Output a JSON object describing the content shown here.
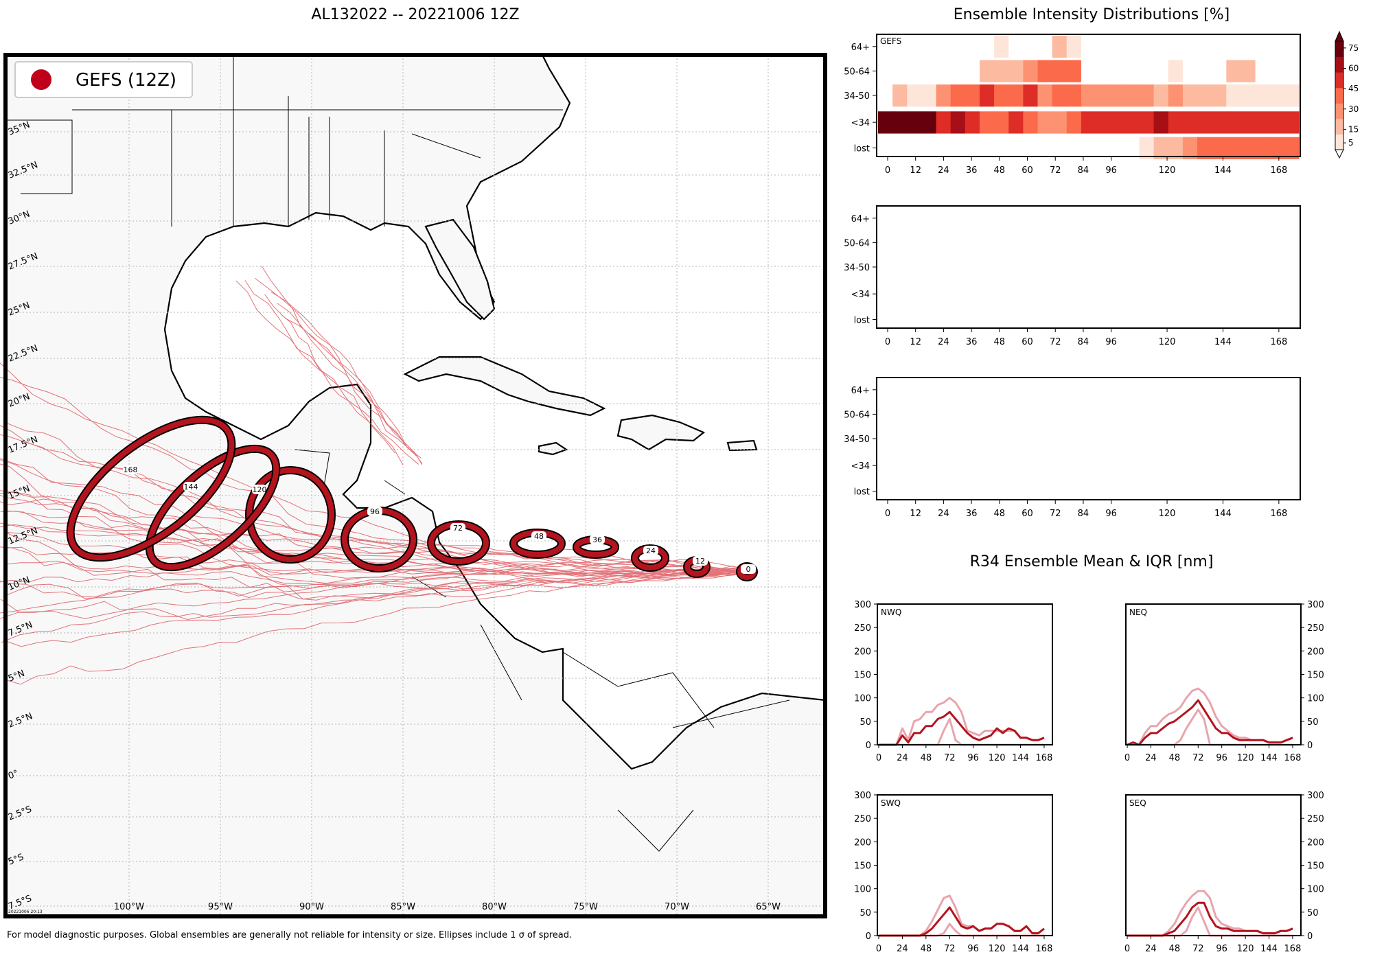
{
  "map": {
    "title": "AL132022 -- 20221006 12Z",
    "legend_label": "GEFS (12Z)",
    "footer": "For model diagnostic purposes. Global ensembles are generally not reliable for intensity or size. Ellipses include 1 σ of spread.",
    "stamp": "20221006 20:13",
    "lon_labels": [
      "100°W",
      "95°W",
      "90°W",
      "85°W",
      "80°W",
      "75°W",
      "70°W",
      "65°W"
    ],
    "lat_labels": [
      "35°N",
      "32.5°N",
      "30°N",
      "27.5°N",
      "25°N",
      "22.5°N",
      "20°N",
      "17.5°N",
      "15°N",
      "12.5°N",
      "10°N",
      "7.5°N",
      "5°N",
      "2.5°N",
      "0°",
      "2.5°S",
      "5°S",
      "7.5°S"
    ],
    "track_color": "#c0392b",
    "ellipse_color": "#b3141e",
    "forecast_ellipses": [
      {
        "hour": "0"
      },
      {
        "hour": "12"
      },
      {
        "hour": "24"
      },
      {
        "hour": "36"
      },
      {
        "hour": "48"
      },
      {
        "hour": "72"
      },
      {
        "hour": "96"
      },
      {
        "hour": "120"
      },
      {
        "hour": "144"
      },
      {
        "hour": "168"
      }
    ]
  },
  "intensity": {
    "title": "Ensemble Intensity Distributions [%]",
    "categories": [
      "64+",
      "50-64",
      "34-50",
      "<34",
      "lost"
    ],
    "x_ticks": [
      "0",
      "12",
      "24",
      "36",
      "48",
      "60",
      "72",
      "84",
      "96",
      "120",
      "144",
      "168"
    ],
    "panel_label": "GEFS",
    "colorbar_ticks": [
      "75",
      "60",
      "45",
      "30",
      "15",
      "5"
    ],
    "colorbar_colors": [
      "#fee5d9",
      "#fcbba1",
      "#fc9272",
      "#fb6a4a",
      "#de2d26",
      "#a50f15",
      "#67000d"
    ]
  },
  "r34": {
    "title": "R34 Ensemble Mean & IQR [nm]",
    "y_ticks": [
      "300",
      "250",
      "200",
      "150",
      "100",
      "50",
      "0"
    ],
    "x_ticks": [
      "0",
      "24",
      "48",
      "72",
      "96",
      "120",
      "144",
      "168"
    ],
    "panels": [
      {
        "label": "NWQ"
      },
      {
        "label": "NEQ"
      },
      {
        "label": "SWQ"
      },
      {
        "label": "SEQ"
      }
    ],
    "mean_color": "#b3141e",
    "iqr_color": "#e8a5ad"
  },
  "chart_data": [
    {
      "type": "heatmap",
      "title": "Ensemble Intensity Distributions [%]",
      "panel": "GEFS",
      "x": [
        0,
        6,
        12,
        18,
        24,
        30,
        36,
        42,
        48,
        54,
        60,
        66,
        72,
        78,
        84,
        90,
        96,
        102,
        108,
        114,
        120,
        126,
        132,
        138,
        144,
        150,
        156,
        162,
        168
      ],
      "y": [
        "64+",
        "50-64",
        "34-50",
        "<34",
        "lost"
      ],
      "values": [
        [
          0,
          0,
          0,
          0,
          0,
          0,
          0,
          0,
          5,
          0,
          0,
          0,
          10,
          5,
          0,
          0,
          0,
          0,
          0,
          0,
          0,
          0,
          0,
          0,
          0,
          0,
          0,
          0,
          0
        ],
        [
          0,
          0,
          0,
          0,
          0,
          0,
          0,
          10,
          15,
          15,
          20,
          40,
          35,
          35,
          0,
          0,
          0,
          0,
          0,
          0,
          5,
          0,
          0,
          0,
          10,
          10,
          0,
          0,
          0
        ],
        [
          0,
          15,
          5,
          5,
          20,
          30,
          35,
          50,
          40,
          35,
          50,
          25,
          35,
          35,
          20,
          20,
          20,
          20,
          20,
          15,
          20,
          10,
          10,
          10,
          5,
          5,
          5,
          5,
          5
        ],
        [
          75,
          75,
          75,
          75,
          50,
          60,
          50,
          40,
          30,
          45,
          40,
          20,
          20,
          30,
          50,
          50,
          55,
          55,
          55,
          65,
          55,
          55,
          55,
          50,
          55,
          50,
          50,
          50,
          50
        ],
        [
          0,
          0,
          0,
          0,
          0,
          0,
          0,
          0,
          0,
          0,
          0,
          0,
          0,
          0,
          0,
          0,
          0,
          0,
          5,
          10,
          15,
          20,
          30,
          30,
          30,
          30,
          35,
          35,
          35
        ]
      ],
      "colorbar": {
        "ticks": [
          5,
          15,
          30,
          45,
          60,
          75
        ]
      }
    },
    {
      "type": "line",
      "title": "R34 Ensemble Mean & IQR [nm]",
      "panel": "NWQ",
      "x": [
        0,
        6,
        12,
        18,
        24,
        30,
        36,
        42,
        48,
        54,
        60,
        66,
        72,
        78,
        84,
        90,
        96,
        102,
        108,
        114,
        120,
        126,
        132,
        138,
        144,
        150,
        156,
        162,
        168
      ],
      "ylim": [
        0,
        300
      ],
      "series": [
        {
          "values": [
            0,
            0,
            0,
            0,
            20,
            5,
            25,
            25,
            40,
            40,
            55,
            60,
            70,
            55,
            40,
            25,
            15,
            10,
            15,
            20,
            35,
            25,
            35,
            30,
            15,
            15,
            10,
            10,
            15
          ]
        },
        {
          "values": [
            0,
            0,
            0,
            0,
            35,
            10,
            50,
            55,
            70,
            70,
            85,
            90,
            100,
            90,
            70,
            30,
            25,
            20,
            30,
            30,
            30,
            30,
            30,
            30,
            15,
            15,
            10,
            10,
            15
          ]
        },
        {
          "values": [
            0,
            0,
            0,
            0,
            0,
            0,
            0,
            0,
            0,
            0,
            0,
            30,
            55,
            10,
            0,
            0,
            0,
            0,
            0,
            0,
            0,
            0,
            0,
            0,
            0,
            0,
            0,
            0,
            0
          ]
        }
      ]
    },
    {
      "type": "line",
      "panel": "NEQ",
      "x": [
        0,
        6,
        12,
        18,
        24,
        30,
        36,
        42,
        48,
        54,
        60,
        66,
        72,
        78,
        84,
        90,
        96,
        102,
        108,
        114,
        120,
        126,
        132,
        138,
        144,
        150,
        156,
        162,
        168
      ],
      "ylim": [
        0,
        300
      ],
      "series": [
        {
          "values": [
            0,
            5,
            0,
            15,
            25,
            25,
            35,
            45,
            50,
            60,
            70,
            80,
            95,
            75,
            55,
            35,
            25,
            25,
            15,
            10,
            10,
            10,
            10,
            10,
            5,
            5,
            5,
            10,
            15
          ]
        },
        {
          "values": [
            0,
            5,
            0,
            25,
            40,
            40,
            55,
            65,
            70,
            80,
            100,
            115,
            120,
            110,
            90,
            60,
            40,
            30,
            20,
            15,
            15,
            10,
            10,
            10,
            5,
            5,
            5,
            10,
            15
          ]
        },
        {
          "values": [
            0,
            0,
            0,
            0,
            0,
            0,
            0,
            0,
            0,
            10,
            35,
            55,
            75,
            55,
            0,
            0,
            0,
            0,
            0,
            0,
            0,
            0,
            0,
            0,
            0,
            0,
            0,
            0,
            0
          ]
        }
      ]
    },
    {
      "type": "line",
      "panel": "SWQ",
      "x": [
        0,
        6,
        12,
        18,
        24,
        30,
        36,
        42,
        48,
        54,
        60,
        66,
        72,
        78,
        84,
        90,
        96,
        102,
        108,
        114,
        120,
        126,
        132,
        138,
        144,
        150,
        156,
        162,
        168
      ],
      "ylim": [
        0,
        300
      ],
      "series": [
        {
          "values": [
            0,
            0,
            0,
            0,
            0,
            0,
            0,
            0,
            5,
            15,
            30,
            45,
            60,
            40,
            20,
            15,
            20,
            10,
            15,
            15,
            25,
            25,
            20,
            10,
            10,
            20,
            5,
            5,
            15
          ]
        },
        {
          "values": [
            0,
            0,
            0,
            0,
            0,
            0,
            0,
            0,
            10,
            30,
            55,
            80,
            85,
            60,
            25,
            20,
            20,
            10,
            15,
            15,
            25,
            25,
            20,
            10,
            10,
            20,
            5,
            5,
            15
          ]
        },
        {
          "values": [
            0,
            0,
            0,
            0,
            0,
            0,
            0,
            0,
            0,
            0,
            0,
            5,
            25,
            10,
            0,
            0,
            0,
            0,
            0,
            0,
            0,
            0,
            0,
            0,
            0,
            0,
            0,
            0,
            0
          ]
        }
      ]
    },
    {
      "type": "line",
      "panel": "SEQ",
      "x": [
        0,
        6,
        12,
        18,
        24,
        30,
        36,
        42,
        48,
        54,
        60,
        66,
        72,
        78,
        84,
        90,
        96,
        102,
        108,
        114,
        120,
        126,
        132,
        138,
        144,
        150,
        156,
        162,
        168
      ],
      "ylim": [
        0,
        300
      ],
      "series": [
        {
          "values": [
            0,
            0,
            0,
            0,
            0,
            0,
            0,
            5,
            10,
            25,
            40,
            60,
            70,
            70,
            40,
            20,
            15,
            15,
            10,
            10,
            10,
            10,
            10,
            5,
            5,
            5,
            10,
            10,
            15
          ]
        },
        {
          "values": [
            0,
            0,
            0,
            0,
            0,
            0,
            0,
            10,
            25,
            50,
            70,
            85,
            95,
            95,
            80,
            40,
            25,
            20,
            15,
            15,
            10,
            10,
            10,
            5,
            5,
            5,
            10,
            10,
            15
          ]
        },
        {
          "values": [
            0,
            0,
            0,
            0,
            0,
            0,
            0,
            0,
            0,
            0,
            10,
            40,
            60,
            30,
            0,
            0,
            0,
            0,
            0,
            0,
            0,
            0,
            0,
            0,
            0,
            0,
            0,
            0,
            0
          ]
        }
      ]
    }
  ]
}
